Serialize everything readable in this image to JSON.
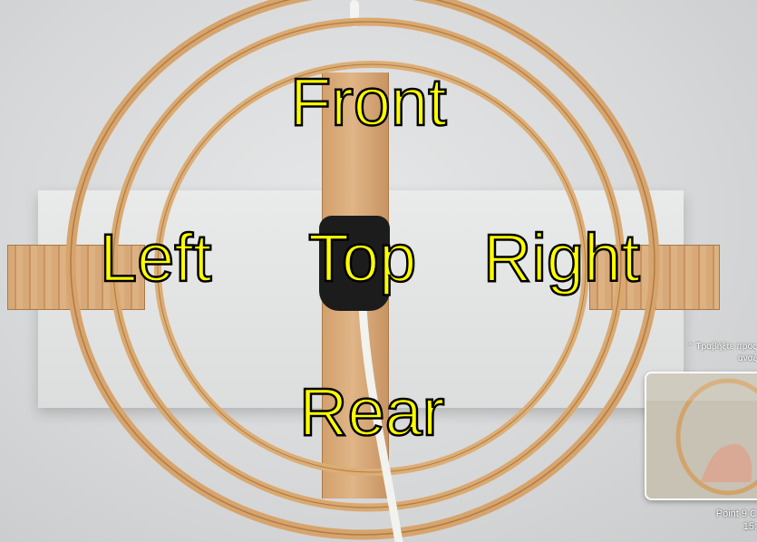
{
  "labels": {
    "front": "Front",
    "left": "Left",
    "top": "Top",
    "right": "Right",
    "rear": "Rear"
  },
  "suggestion": {
    "hint_line1": "Τραβήξτε προς",
    "hint_line2": "αναζ",
    "chevron_icon": "double-chevron-up-icon"
  },
  "thumbnail": {
    "caption_line1": "Point 9 C",
    "caption_line2": "15:"
  },
  "colors": {
    "label_fill": "#ffff00",
    "label_outline": "#000000",
    "wood": "#d8a978"
  }
}
